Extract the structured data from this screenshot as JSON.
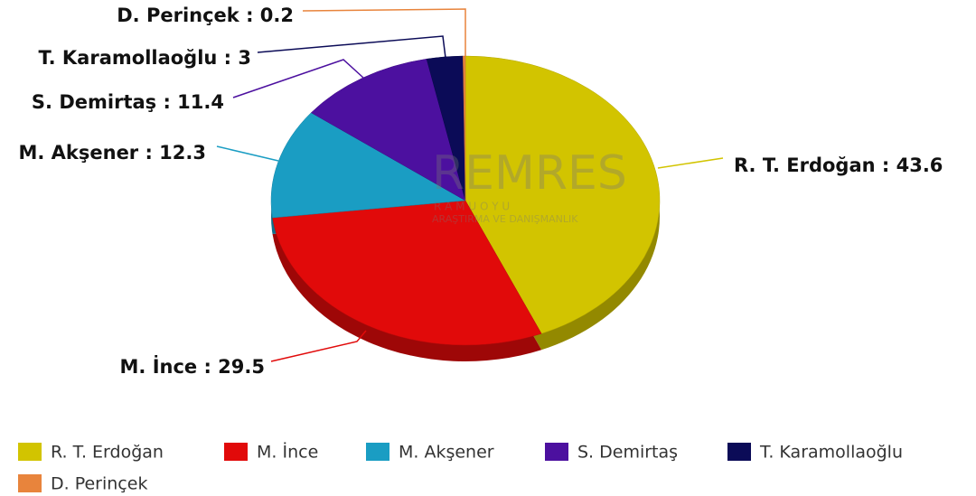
{
  "chart_data": {
    "type": "pie",
    "categories": [
      "R. T. Erdoğan",
      "M. İnce",
      "M. Akşener",
      "S. Demirtaş",
      "T. Karamollaoğlu",
      "D. Perinçek"
    ],
    "values": [
      43.6,
      29.5,
      12.3,
      11.4,
      3,
      0.2
    ],
    "value_labels": [
      "R. T. Erdoğan : 43.6",
      "M. İnce : 29.5",
      "M. Akşener : 12.3",
      "S. Demirtaş : 11.4",
      "T. Karamollaoğlu : 3",
      "D. Perinçek : 0.2"
    ],
    "colors": [
      "#d2c400",
      "#e10a0a",
      "#1a9dc3",
      "#4c109f",
      "#0b0b57",
      "#e8843c"
    ],
    "legend": "bottom",
    "watermark": {
      "brand": "REMRES",
      "line1": "R A M U O Y U",
      "line2": "ARAŞTIRMA VE DANIŞMANLIK"
    }
  }
}
